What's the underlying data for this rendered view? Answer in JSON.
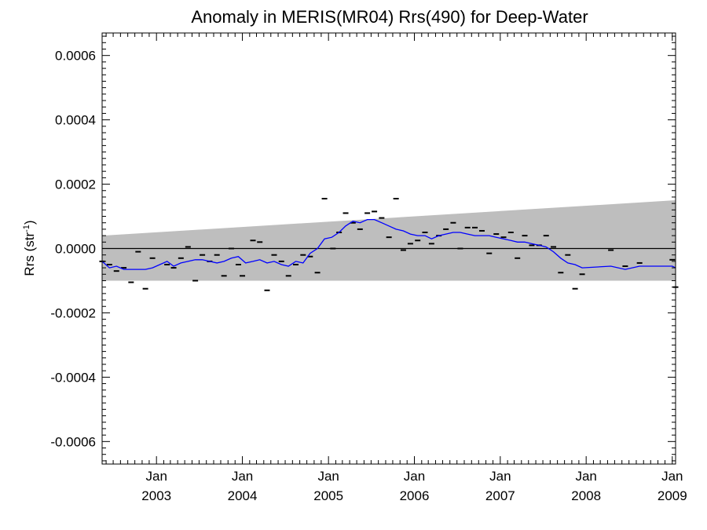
{
  "chart_data": {
    "type": "line",
    "title": "Anomaly in MERIS(MR04) Rrs(490) for Deep-Water",
    "ylabel": "Rrs (str",
    "ylabel_sup": "-1",
    "ylabel_suffix": ")",
    "xlim": [
      "2002-05-15",
      "2009-01-15"
    ],
    "ylim": [
      -0.00067,
      0.00067
    ],
    "y_ticks": [
      {
        "value": 0.0006,
        "label": "0.0006"
      },
      {
        "value": 0.0004,
        "label": "0.0004"
      },
      {
        "value": 0.0002,
        "label": "0.0002"
      },
      {
        "value": 0.0,
        "label": "0.0000"
      },
      {
        "value": -0.0002,
        "label": "-0.0002"
      },
      {
        "value": -0.0004,
        "label": "-0.0004"
      },
      {
        "value": -0.0006,
        "label": "-0.0006"
      }
    ],
    "x_ticks": [
      {
        "date": "2003-01-01",
        "month": "Jan",
        "year": "2003"
      },
      {
        "date": "2004-01-01",
        "month": "Jan",
        "year": "2004"
      },
      {
        "date": "2005-01-01",
        "month": "Jan",
        "year": "2005"
      },
      {
        "date": "2006-01-01",
        "month": "Jan",
        "year": "2006"
      },
      {
        "date": "2007-01-01",
        "month": "Jan",
        "year": "2007"
      },
      {
        "date": "2008-01-01",
        "month": "Jan",
        "year": "2008"
      },
      {
        "date": "2009-01-01",
        "month": "Jan",
        "year": "2009"
      }
    ],
    "band": {
      "color": "#bebebe",
      "upper": [
        [
          "2002-05-15",
          4e-05
        ],
        [
          "2009-01-15",
          0.00015
        ]
      ],
      "lower": [
        [
          "2002-05-15",
          -0.0001
        ],
        [
          "2009-01-15",
          -0.0001
        ]
      ]
    },
    "zero_line": 0.0,
    "points_color": "#000000",
    "line_color": "#0000ff",
    "points": [
      [
        "2002-05-15",
        -4e-05
      ],
      [
        "2002-06-15",
        -5e-05
      ],
      [
        "2002-07-15",
        -7e-05
      ],
      [
        "2002-08-15",
        -6e-05
      ],
      [
        "2002-09-15",
        -0.000105
      ],
      [
        "2002-10-15",
        -1e-05
      ],
      [
        "2002-11-15",
        -0.000125
      ],
      [
        "2002-12-15",
        -3e-05
      ],
      [
        "2003-02-15",
        -5e-05
      ],
      [
        "2003-03-15",
        -6e-05
      ],
      [
        "2003-04-15",
        -3e-05
      ],
      [
        "2003-05-15",
        5e-06
      ],
      [
        "2003-06-15",
        -0.0001
      ],
      [
        "2003-07-15",
        -2e-05
      ],
      [
        "2003-08-15",
        -4e-05
      ],
      [
        "2003-09-15",
        -2e-05
      ],
      [
        "2003-10-15",
        -8.5e-05
      ],
      [
        "2003-11-15",
        0.0
      ],
      [
        "2003-12-15",
        -5e-05
      ],
      [
        "2004-01-01",
        -8.5e-05
      ],
      [
        "2004-02-15",
        2.5e-05
      ],
      [
        "2004-03-15",
        2e-05
      ],
      [
        "2004-04-15",
        -0.00013
      ],
      [
        "2004-05-15",
        -2e-05
      ],
      [
        "2004-06-15",
        -4e-05
      ],
      [
        "2004-07-15",
        -8.5e-05
      ],
      [
        "2004-08-15",
        -5e-05
      ],
      [
        "2004-09-15",
        -2e-05
      ],
      [
        "2004-10-15",
        -2.5e-05
      ],
      [
        "2004-11-15",
        -7.5e-05
      ],
      [
        "2004-12-15",
        0.000155
      ],
      [
        "2005-01-20",
        0.0
      ],
      [
        "2005-02-15",
        5e-05
      ],
      [
        "2005-03-15",
        0.00011
      ],
      [
        "2005-04-15",
        8e-05
      ],
      [
        "2005-05-15",
        6e-05
      ],
      [
        "2005-06-15",
        0.00011
      ],
      [
        "2005-07-15",
        0.000115
      ],
      [
        "2005-08-15",
        9.5e-05
      ],
      [
        "2005-09-15",
        3.5e-05
      ],
      [
        "2005-10-15",
        0.000155
      ],
      [
        "2005-11-15",
        -5e-06
      ],
      [
        "2005-12-15",
        1.5e-05
      ],
      [
        "2006-01-15",
        2.5e-05
      ],
      [
        "2006-02-15",
        5e-05
      ],
      [
        "2006-03-15",
        1.5e-05
      ],
      [
        "2006-04-15",
        4e-05
      ],
      [
        "2006-05-15",
        6e-05
      ],
      [
        "2006-06-15",
        8e-05
      ],
      [
        "2006-07-15",
        0.0
      ],
      [
        "2006-08-15",
        6.5e-05
      ],
      [
        "2006-09-15",
        6.5e-05
      ],
      [
        "2006-10-15",
        5.5e-05
      ],
      [
        "2006-11-15",
        -1.5e-05
      ],
      [
        "2006-12-15",
        4.5e-05
      ],
      [
        "2007-01-15",
        3.5e-05
      ],
      [
        "2007-02-15",
        5e-05
      ],
      [
        "2007-03-15",
        -3e-05
      ],
      [
        "2007-04-15",
        4e-05
      ],
      [
        "2007-05-15",
        1e-05
      ],
      [
        "2007-06-15",
        1e-05
      ],
      [
        "2007-07-15",
        4e-05
      ],
      [
        "2007-08-15",
        5e-06
      ],
      [
        "2007-09-15",
        -7.5e-05
      ],
      [
        "2007-10-15",
        -2e-05
      ],
      [
        "2007-11-15",
        -0.000125
      ],
      [
        "2007-12-15",
        -8e-05
      ],
      [
        "2008-04-15",
        -5e-06
      ],
      [
        "2008-06-15",
        -5.5e-05
      ],
      [
        "2008-08-15",
        -4.5e-05
      ],
      [
        "2009-01-01",
        -3.5e-05
      ],
      [
        "2009-01-15",
        -0.00012
      ]
    ],
    "running_mean": [
      [
        "2002-05-15",
        -4e-05
      ],
      [
        "2002-06-15",
        -6e-05
      ],
      [
        "2002-07-15",
        -5.5e-05
      ],
      [
        "2002-08-15",
        -6.5e-05
      ],
      [
        "2002-09-15",
        -6.5e-05
      ],
      [
        "2002-10-15",
        -6.5e-05
      ],
      [
        "2002-11-15",
        -6.5e-05
      ],
      [
        "2002-12-15",
        -6e-05
      ],
      [
        "2003-01-15",
        -5e-05
      ],
      [
        "2003-02-15",
        -4e-05
      ],
      [
        "2003-03-15",
        -5.5e-05
      ],
      [
        "2003-04-15",
        -4.5e-05
      ],
      [
        "2003-05-15",
        -4e-05
      ],
      [
        "2003-06-15",
        -3.5e-05
      ],
      [
        "2003-07-15",
        -3.5e-05
      ],
      [
        "2003-08-15",
        -4e-05
      ],
      [
        "2003-09-15",
        -4.5e-05
      ],
      [
        "2003-10-15",
        -4e-05
      ],
      [
        "2003-11-15",
        -3e-05
      ],
      [
        "2003-12-15",
        -2.5e-05
      ],
      [
        "2004-01-15",
        -4.5e-05
      ],
      [
        "2004-02-15",
        -4e-05
      ],
      [
        "2004-03-15",
        -3.5e-05
      ],
      [
        "2004-04-15",
        -4.5e-05
      ],
      [
        "2004-05-15",
        -4e-05
      ],
      [
        "2004-06-15",
        -5e-05
      ],
      [
        "2004-07-15",
        -5.5e-05
      ],
      [
        "2004-08-15",
        -4e-05
      ],
      [
        "2004-09-15",
        -4.5e-05
      ],
      [
        "2004-10-15",
        -1.5e-05
      ],
      [
        "2004-11-15",
        0.0
      ],
      [
        "2004-12-15",
        3e-05
      ],
      [
        "2005-01-15",
        3.5e-05
      ],
      [
        "2005-02-15",
        5e-05
      ],
      [
        "2005-03-15",
        7e-05
      ],
      [
        "2005-04-15",
        8.5e-05
      ],
      [
        "2005-05-15",
        8e-05
      ],
      [
        "2005-06-15",
        9e-05
      ],
      [
        "2005-07-15",
        9e-05
      ],
      [
        "2005-08-15",
        8e-05
      ],
      [
        "2005-09-15",
        7e-05
      ],
      [
        "2005-10-15",
        6e-05
      ],
      [
        "2005-11-15",
        5.5e-05
      ],
      [
        "2005-12-15",
        4.5e-05
      ],
      [
        "2006-01-15",
        4e-05
      ],
      [
        "2006-02-15",
        4e-05
      ],
      [
        "2006-03-15",
        3e-05
      ],
      [
        "2006-04-15",
        4e-05
      ],
      [
        "2006-05-15",
        4.5e-05
      ],
      [
        "2006-06-15",
        5e-05
      ],
      [
        "2006-07-15",
        5e-05
      ],
      [
        "2006-08-15",
        4.5e-05
      ],
      [
        "2006-09-15",
        4e-05
      ],
      [
        "2006-10-15",
        4e-05
      ],
      [
        "2006-11-15",
        4e-05
      ],
      [
        "2006-12-15",
        3.5e-05
      ],
      [
        "2007-01-15",
        3e-05
      ],
      [
        "2007-02-15",
        2.5e-05
      ],
      [
        "2007-03-15",
        2e-05
      ],
      [
        "2007-04-15",
        2e-05
      ],
      [
        "2007-05-15",
        1.5e-05
      ],
      [
        "2007-06-15",
        1e-05
      ],
      [
        "2007-07-15",
        5e-06
      ],
      [
        "2007-08-15",
        -1e-05
      ],
      [
        "2007-09-15",
        -3e-05
      ],
      [
        "2007-10-15",
        -4.5e-05
      ],
      [
        "2007-11-15",
        -5e-05
      ],
      [
        "2007-12-15",
        -6e-05
      ],
      [
        "2008-04-15",
        -5.5e-05
      ],
      [
        "2008-06-15",
        -6.5e-05
      ],
      [
        "2008-08-15",
        -5.5e-05
      ],
      [
        "2009-01-01",
        -5.5e-05
      ],
      [
        "2009-01-15",
        -6e-05
      ]
    ]
  }
}
